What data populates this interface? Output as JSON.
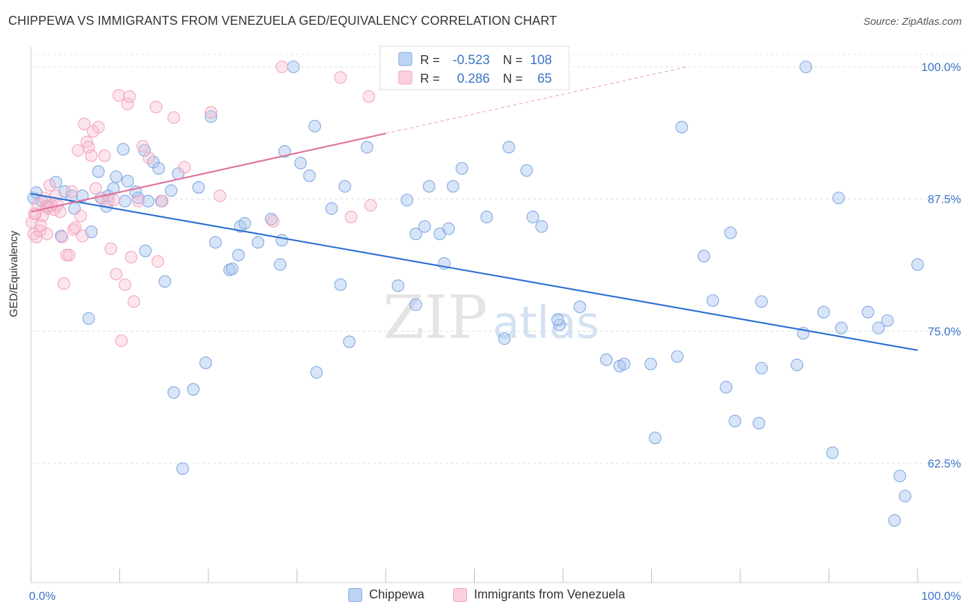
{
  "title": "CHIPPEWA VS IMMIGRANTS FROM VENEZUELA GED/EQUIVALENCY CORRELATION CHART",
  "source": "Source: ZipAtlas.com",
  "watermark": {
    "zip": "ZIP",
    "atlas": "atlas"
  },
  "chart_data": {
    "type": "scatter",
    "xlabel": "",
    "ylabel": "GED/Equivalency",
    "xlim": [
      0,
      100
    ],
    "ylim": [
      52.5,
      102.5
    ],
    "x_tick_labels": [
      "0.0%",
      "100.0%"
    ],
    "y_ticks": [
      62.5,
      75.0,
      87.5,
      100.0
    ],
    "y_tick_labels": [
      "62.5%",
      "75.0%",
      "87.5%",
      "100.0%"
    ],
    "grid": true,
    "legend": [
      {
        "name": "Chippewa",
        "r_label": "R =",
        "r": "-0.523",
        "n_label": "N =",
        "n": "108"
      },
      {
        "name": "Immigrants from Venezuela",
        "r_label": "R =",
        "r": "0.286",
        "n_label": "N =",
        "n": "65"
      }
    ],
    "series": [
      {
        "name": "Chippewa",
        "color": "#7da7e0",
        "trend": {
          "x0": 0,
          "y0": 88.0,
          "x1": 100,
          "y1": 73.2,
          "color": "#2b6fd1"
        },
        "points": [
          [
            0.3,
            87.6
          ],
          [
            0.6,
            88.1
          ],
          [
            1.2,
            87.3
          ],
          [
            1.9,
            86.8
          ],
          [
            2.8,
            89.1
          ],
          [
            3.4,
            84.0
          ],
          [
            3.8,
            88.2
          ],
          [
            4.6,
            87.8
          ],
          [
            4.9,
            86.6
          ],
          [
            5.8,
            87.8
          ],
          [
            6.5,
            76.2
          ],
          [
            6.8,
            84.4
          ],
          [
            7.6,
            90.1
          ],
          [
            7.9,
            87.6
          ],
          [
            8.7,
            87.8
          ],
          [
            8.5,
            86.8
          ],
          [
            9.3,
            88.5
          ],
          [
            9.6,
            89.6
          ],
          [
            10.4,
            92.2
          ],
          [
            10.6,
            87.3
          ],
          [
            10.9,
            89.2
          ],
          [
            11.8,
            88.2
          ],
          [
            12.1,
            87.6
          ],
          [
            12.8,
            92.1
          ],
          [
            12.9,
            82.6
          ],
          [
            13.2,
            87.3
          ],
          [
            13.8,
            91.0
          ],
          [
            14.4,
            90.4
          ],
          [
            14.7,
            87.3
          ],
          [
            15.1,
            79.7
          ],
          [
            15.8,
            88.3
          ],
          [
            16.1,
            69.2
          ],
          [
            16.6,
            89.9
          ],
          [
            17.1,
            62.0
          ],
          [
            18.3,
            69.5
          ],
          [
            18.9,
            88.6
          ],
          [
            19.7,
            72.0
          ],
          [
            20.3,
            95.3
          ],
          [
            20.8,
            83.4
          ],
          [
            22.4,
            80.8
          ],
          [
            22.7,
            80.9
          ],
          [
            23.4,
            82.2
          ],
          [
            23.6,
            84.9
          ],
          [
            24.1,
            85.2
          ],
          [
            25.6,
            83.4
          ],
          [
            27.1,
            85.6
          ],
          [
            28.1,
            81.3
          ],
          [
            28.3,
            83.6
          ],
          [
            28.6,
            92.0
          ],
          [
            29.6,
            100.0
          ],
          [
            30.4,
            90.9
          ],
          [
            31.4,
            89.7
          ],
          [
            32.0,
            94.4
          ],
          [
            32.2,
            71.1
          ],
          [
            33.9,
            86.6
          ],
          [
            34.9,
            79.4
          ],
          [
            35.9,
            74.0
          ],
          [
            35.4,
            88.7
          ],
          [
            37.9,
            92.4
          ],
          [
            41.4,
            79.3
          ],
          [
            42.4,
            87.4
          ],
          [
            43.4,
            77.5
          ],
          [
            43.4,
            84.2
          ],
          [
            44.4,
            84.9
          ],
          [
            44.9,
            88.7
          ],
          [
            46.1,
            84.2
          ],
          [
            46.6,
            81.4
          ],
          [
            47.1,
            84.7
          ],
          [
            47.6,
            88.7
          ],
          [
            48.6,
            90.4
          ],
          [
            51.4,
            85.8
          ],
          [
            53.4,
            74.3
          ],
          [
            53.9,
            92.4
          ],
          [
            55.9,
            90.2
          ],
          [
            56.6,
            85.8
          ],
          [
            57.6,
            84.9
          ],
          [
            59.6,
            75.6
          ],
          [
            59.4,
            76.1
          ],
          [
            61.9,
            77.3
          ],
          [
            64.9,
            72.3
          ],
          [
            66.4,
            71.7
          ],
          [
            66.9,
            71.9
          ],
          [
            69.9,
            71.9
          ],
          [
            70.4,
            64.9
          ],
          [
            72.9,
            72.6
          ],
          [
            73.4,
            94.3
          ],
          [
            75.9,
            82.1
          ],
          [
            76.9,
            77.9
          ],
          [
            78.9,
            84.3
          ],
          [
            78.4,
            69.7
          ],
          [
            79.4,
            66.5
          ],
          [
            82.4,
            71.5
          ],
          [
            82.4,
            77.8
          ],
          [
            82.1,
            66.3
          ],
          [
            86.4,
            71.8
          ],
          [
            87.4,
            100.0
          ],
          [
            87.1,
            74.8
          ],
          [
            89.4,
            76.8
          ],
          [
            90.4,
            63.5
          ],
          [
            91.1,
            87.6
          ],
          [
            91.4,
            75.3
          ],
          [
            94.4,
            76.8
          ],
          [
            95.6,
            75.3
          ],
          [
            96.6,
            76.0
          ],
          [
            97.4,
            57.1
          ],
          [
            98.0,
            61.3
          ],
          [
            98.6,
            59.4
          ],
          [
            100.0,
            81.3
          ]
        ]
      },
      {
        "name": "Immigrants from Venezuela",
        "color": "#f2a3bd",
        "trend": {
          "x0": 0,
          "y0": 86.3,
          "x1": 40,
          "y1": 93.7,
          "color": "#e0709a",
          "dash_x1": 74,
          "dash_y1": 100.0
        },
        "points": [
          [
            0.1,
            85.3
          ],
          [
            0.3,
            84.2
          ],
          [
            0.5,
            86.1
          ],
          [
            0.8,
            87.0
          ],
          [
            1.0,
            84.5
          ],
          [
            1.3,
            85.9
          ],
          [
            1.5,
            87.6
          ],
          [
            1.7,
            86.8
          ],
          [
            1.9,
            86.6
          ],
          [
            2.1,
            88.8
          ],
          [
            2.3,
            86.9
          ],
          [
            2.6,
            86.5
          ],
          [
            2.8,
            87.8
          ],
          [
            3.0,
            86.9
          ],
          [
            3.3,
            86.3
          ],
          [
            3.5,
            83.9
          ],
          [
            3.7,
            79.5
          ],
          [
            4.0,
            82.2
          ],
          [
            4.3,
            82.2
          ],
          [
            4.6,
            88.2
          ],
          [
            4.8,
            84.6
          ],
          [
            5.0,
            84.8
          ],
          [
            5.3,
            92.1
          ],
          [
            5.6,
            85.9
          ],
          [
            5.8,
            84.0
          ],
          [
            6.0,
            94.6
          ],
          [
            6.3,
            92.9
          ],
          [
            6.5,
            92.4
          ],
          [
            6.8,
            91.6
          ],
          [
            7.0,
            93.9
          ],
          [
            7.3,
            88.5
          ],
          [
            7.6,
            94.3
          ],
          [
            8.0,
            87.6
          ],
          [
            8.3,
            91.6
          ],
          [
            8.7,
            87.3
          ],
          [
            9.0,
            82.8
          ],
          [
            9.3,
            87.4
          ],
          [
            9.6,
            80.4
          ],
          [
            9.9,
            97.3
          ],
          [
            10.2,
            74.1
          ],
          [
            10.6,
            79.4
          ],
          [
            10.9,
            96.5
          ],
          [
            11.1,
            97.2
          ],
          [
            11.3,
            82.0
          ],
          [
            11.6,
            77.8
          ],
          [
            12.1,
            87.3
          ],
          [
            12.6,
            92.5
          ],
          [
            13.3,
            91.4
          ],
          [
            14.1,
            96.2
          ],
          [
            14.3,
            81.6
          ],
          [
            14.8,
            87.3
          ],
          [
            16.1,
            95.2
          ],
          [
            17.3,
            90.5
          ],
          [
            20.3,
            95.7
          ],
          [
            21.3,
            87.8
          ],
          [
            27.3,
            85.4
          ],
          [
            28.3,
            100.0
          ],
          [
            34.9,
            99.0
          ],
          [
            36.1,
            85.8
          ],
          [
            38.1,
            97.2
          ],
          [
            38.3,
            86.9
          ],
          [
            0.4,
            86.1
          ],
          [
            0.6,
            83.9
          ],
          [
            1.1,
            85.0
          ],
          [
            1.8,
            84.2
          ]
        ]
      }
    ]
  }
}
